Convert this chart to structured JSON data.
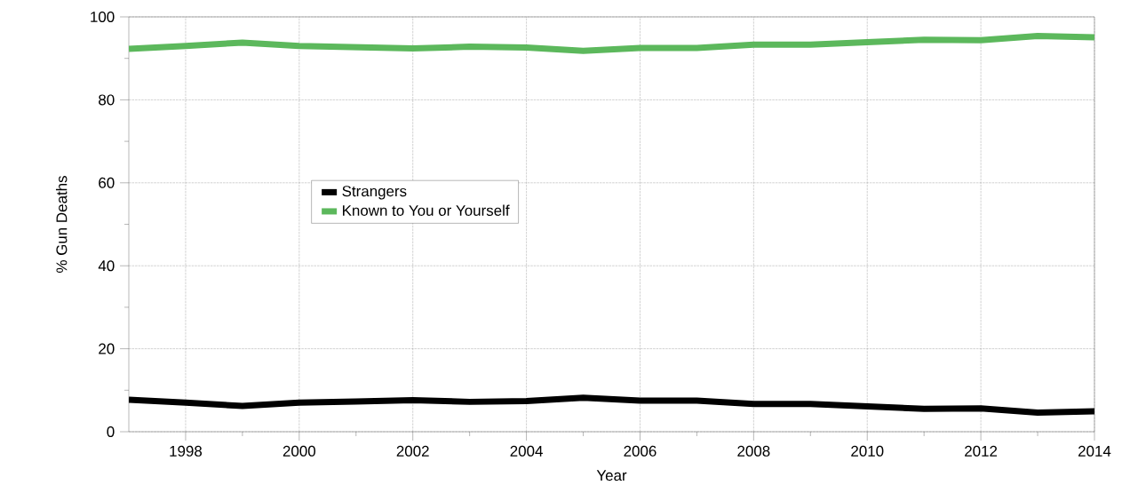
{
  "chart_data": {
    "type": "line",
    "xlabel": "Year",
    "ylabel": "% Gun Deaths",
    "x": [
      1997,
      1998,
      1999,
      2000,
      2001,
      2002,
      2003,
      2004,
      2005,
      2006,
      2007,
      2008,
      2009,
      2010,
      2011,
      2012,
      2013,
      2014
    ],
    "series": [
      {
        "name": "Strangers",
        "color": "#000000",
        "values": [
          7.7,
          7.0,
          6.2,
          7.0,
          7.3,
          7.6,
          7.2,
          7.4,
          8.2,
          7.5,
          7.5,
          6.7,
          6.7,
          6.1,
          5.5,
          5.6,
          4.6,
          4.9
        ]
      },
      {
        "name": "Known to You or Yourself",
        "color": "#5cb85c",
        "values": [
          92.3,
          93.0,
          93.8,
          93.0,
          92.7,
          92.4,
          92.8,
          92.6,
          91.8,
          92.5,
          92.5,
          93.3,
          93.3,
          93.9,
          94.5,
          94.4,
          95.4,
          95.1
        ]
      }
    ],
    "xlim": [
      1997,
      2014
    ],
    "xticks": [
      1998,
      2000,
      2002,
      2004,
      2006,
      2008,
      2010,
      2012,
      2014
    ],
    "ylim": [
      0,
      100
    ],
    "yticks": [
      0,
      20,
      40,
      60,
      80,
      100
    ],
    "grid": true,
    "legend": "left",
    "marker": "none",
    "line_style": "solid"
  }
}
